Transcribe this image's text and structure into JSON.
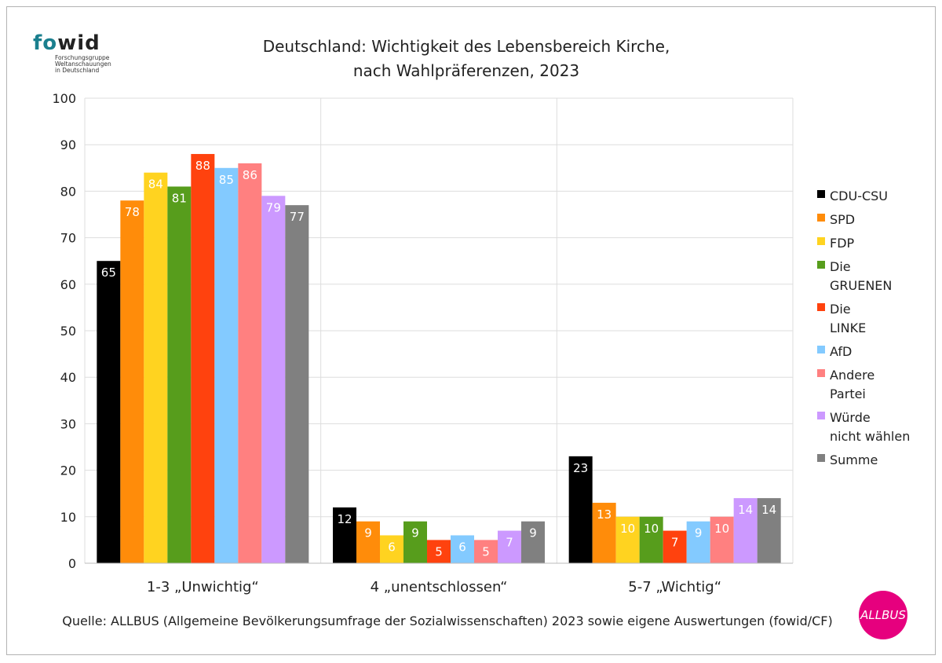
{
  "logo": {
    "text_fo": "fo",
    "text_wid": "wid",
    "subtitle": "Forschungsgruppe Weltanschauungen in Deutschland"
  },
  "badge": {
    "text": "ALLBUS"
  },
  "chart_data": {
    "type": "bar",
    "title": "Deutschland: Wichtigkeit des Lebensbereich Kirche,",
    "subtitle": "nach Wahlpräferenzen, 2023",
    "source": "Quelle: ALLBUS (Allgemeine Bevölkerungsumfrage der Sozialwissenschaften) 2023 sowie eigene Auswertungen (fowid/CF)",
    "categories": [
      "1-3 „Unwichtig“",
      "4 „unentschlossen“",
      "5-7 „Wichtig“"
    ],
    "ylim": [
      0,
      100
    ],
    "yticks": [
      0,
      10,
      20,
      30,
      40,
      50,
      60,
      70,
      80,
      90,
      100
    ],
    "grid": true,
    "legend_position": "right",
    "series": [
      {
        "name": "CDU-CSU",
        "color": "#000000",
        "label_color": "#ffffff",
        "values": [
          65,
          12,
          23
        ]
      },
      {
        "name": "SPD",
        "color": "#ff8c0a",
        "label_color": "#ffffff",
        "values": [
          78,
          9,
          13
        ]
      },
      {
        "name": "FDP",
        "color": "#ffd320",
        "label_color": "#ffffff",
        "values": [
          84,
          6,
          10
        ]
      },
      {
        "name": "Die GRUENEN",
        "color": "#579d1c",
        "label_color": "#ffffff",
        "values": [
          81,
          9,
          10
        ]
      },
      {
        "name": "Die LINKE",
        "color": "#ff420e",
        "label_color": "#ffffff",
        "values": [
          88,
          5,
          7
        ]
      },
      {
        "name": "AfD",
        "color": "#83caff",
        "label_color": "#ffffff",
        "values": [
          85,
          6,
          9
        ]
      },
      {
        "name": "Andere Partei",
        "color": "#ff8080",
        "label_color": "#ffffff",
        "values": [
          86,
          5,
          10
        ]
      },
      {
        "name": "Würde nicht wählen",
        "color": "#cc99ff",
        "label_color": "#ffffff",
        "values": [
          79,
          7,
          14
        ]
      },
      {
        "name": "Summe",
        "color": "#808080",
        "label_color": "#ffffff",
        "values": [
          77,
          9,
          14
        ]
      }
    ]
  }
}
